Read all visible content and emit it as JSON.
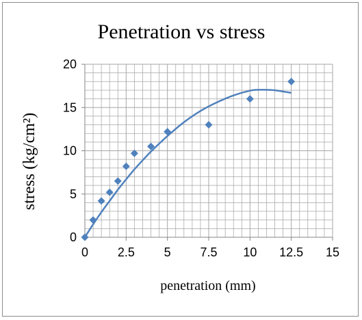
{
  "chart_data": {
    "type": "scatter",
    "title": "Penetration vs stress",
    "xlabel": "penetration (mm)",
    "ylabel": "stress (kg/cm²)",
    "xlim": [
      0,
      15
    ],
    "ylim": [
      0,
      20
    ],
    "x_ticks": [
      "0",
      "2.5",
      "5",
      "7.5",
      "10",
      "12.5",
      "15"
    ],
    "y_ticks": [
      "0",
      "5",
      "10",
      "15",
      "20"
    ],
    "grid": true,
    "legend": "none",
    "colors": {
      "marker": "#4f81bd",
      "trendline": "#4f81bd",
      "grid": "#a6a6a6"
    },
    "series": [
      {
        "x": [
          0,
          0.5,
          1,
          1.5,
          2,
          2.5,
          3,
          4,
          5,
          7.5,
          10,
          12.5
        ],
        "y": [
          0,
          2,
          4.2,
          5.2,
          6.5,
          8.2,
          9.7,
          10.5,
          12.2,
          13,
          16,
          18
        ]
      }
    ],
    "trendline": {
      "type": "polynomial-2",
      "x": [
        0,
        0.5,
        1,
        1.5,
        2,
        2.5,
        3,
        3.5,
        4,
        5,
        6,
        7,
        8,
        9,
        10,
        10.5,
        11,
        11.5,
        12,
        12.5
      ],
      "y": [
        0,
        1.5,
        2.9,
        4.2,
        5.5,
        6.7,
        7.85,
        8.9,
        9.9,
        11.7,
        13.3,
        14.6,
        15.6,
        16.4,
        16.95,
        17.05,
        17.05,
        17.0,
        16.85,
        16.7
      ]
    }
  }
}
